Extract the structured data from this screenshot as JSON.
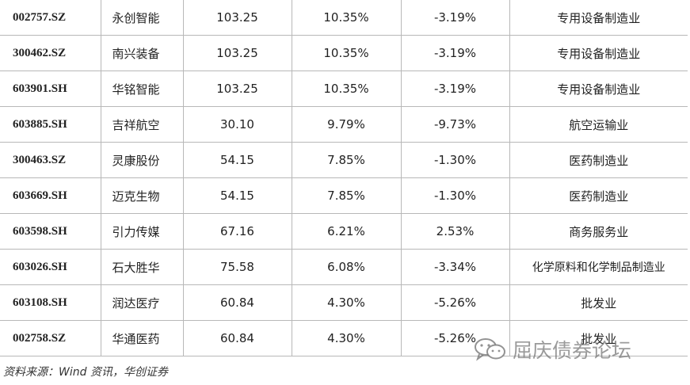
{
  "columns": [
    "code",
    "name",
    "price",
    "change_pct",
    "change2_pct",
    "industry"
  ],
  "rows": [
    {
      "code": "002757.SZ",
      "name": "永创智能",
      "price": "103.25",
      "change_pct": "10.35%",
      "change2_pct": "-3.19%",
      "industry": "专用设备制造业"
    },
    {
      "code": "300462.SZ",
      "name": "南兴装备",
      "price": "103.25",
      "change_pct": "10.35%",
      "change2_pct": "-3.19%",
      "industry": "专用设备制造业"
    },
    {
      "code": "603901.SH",
      "name": "华铭智能",
      "price": "103.25",
      "change_pct": "10.35%",
      "change2_pct": "-3.19%",
      "industry": "专用设备制造业"
    },
    {
      "code": "603885.SH",
      "name": "吉祥航空",
      "price": "30.10",
      "change_pct": "9.79%",
      "change2_pct": "-9.73%",
      "industry": "航空运输业"
    },
    {
      "code": "300463.SZ",
      "name": "灵康股份",
      "price": "54.15",
      "change_pct": "7.85%",
      "change2_pct": "-1.30%",
      "industry": "医药制造业"
    },
    {
      "code": "603669.SH",
      "name": "迈克生物",
      "price": "54.15",
      "change_pct": "7.85%",
      "change2_pct": "-1.30%",
      "industry": "医药制造业"
    },
    {
      "code": "603598.SH",
      "name": "引力传媒",
      "price": "67.16",
      "change_pct": "6.21%",
      "change2_pct": "2.53%",
      "industry": "商务服务业"
    },
    {
      "code": "603026.SH",
      "name": "石大胜华",
      "price": "75.58",
      "change_pct": "6.08%",
      "change2_pct": "-3.34%",
      "industry": "化学原料和化学制品制造业"
    },
    {
      "code": "603108.SH",
      "name": "润达医疗",
      "price": "60.84",
      "change_pct": "4.30%",
      "change2_pct": "-5.26%",
      "industry": "批发业"
    },
    {
      "code": "002758.SZ",
      "name": "华通医药",
      "price": "60.84",
      "change_pct": "4.30%",
      "change2_pct": "-5.26%",
      "industry": "批发业"
    }
  ],
  "source": "资料来源：Wind 资讯，华创证券",
  "watermark": {
    "text": "屈庆债券论坛",
    "icon": "wechat-icon"
  }
}
